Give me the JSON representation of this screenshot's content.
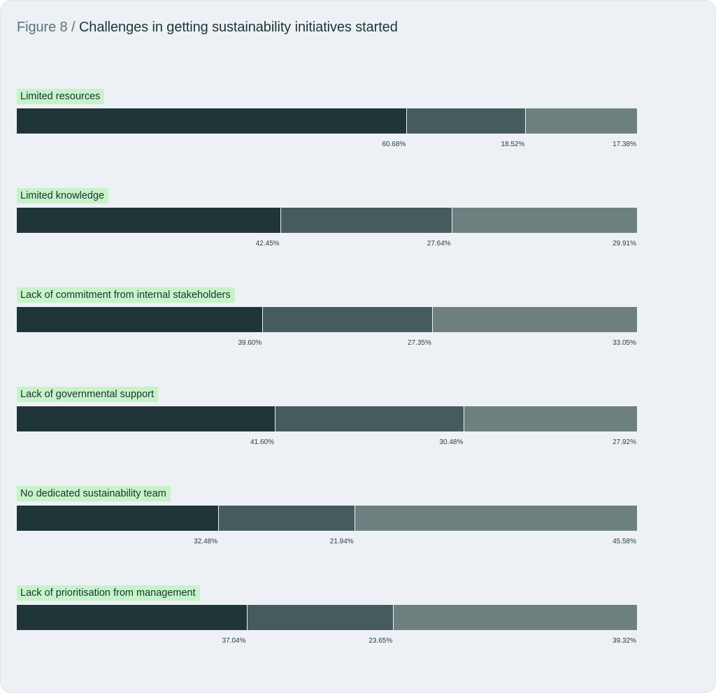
{
  "title": {
    "prefix": "Figure 8",
    "separator": " / ",
    "text": "Challenges in getting sustainability initiatives started"
  },
  "colors": {
    "background": "#edf1f6",
    "label_highlight": "#c6f3c8",
    "series": [
      "#1f3538",
      "#465b5d",
      "#6e7f80"
    ]
  },
  "chart_data": {
    "type": "bar",
    "orientation": "horizontal",
    "stacked": true,
    "xlim": [
      0,
      100
    ],
    "grid": false,
    "categories": [
      "Limited resources",
      "Limited knowledge",
      "Lack of commitment from internal stakeholders",
      "Lack of governmental support",
      "No dedicated sustainability team",
      "Lack of prioritisation from management"
    ],
    "series": [
      {
        "values": [
          60.68,
          42.45,
          39.6,
          41.6,
          32.48,
          37.04
        ]
      },
      {
        "values": [
          18.52,
          27.64,
          27.35,
          30.48,
          21.94,
          23.65
        ]
      },
      {
        "values": [
          17.38,
          29.91,
          33.05,
          27.92,
          45.58,
          39.32
        ]
      }
    ],
    "value_labels": [
      [
        "60.68%",
        "18.52%",
        "17.38%"
      ],
      [
        "42.45%",
        "27.64%",
        "29.91%"
      ],
      [
        "39.60%",
        "27.35%",
        "33.05%"
      ],
      [
        "41.60%",
        "30.48%",
        "27.92%"
      ],
      [
        "32.48%",
        "21.94%",
        "45.58%"
      ],
      [
        "37.04%",
        "23.65%",
        "39.32%"
      ]
    ]
  }
}
